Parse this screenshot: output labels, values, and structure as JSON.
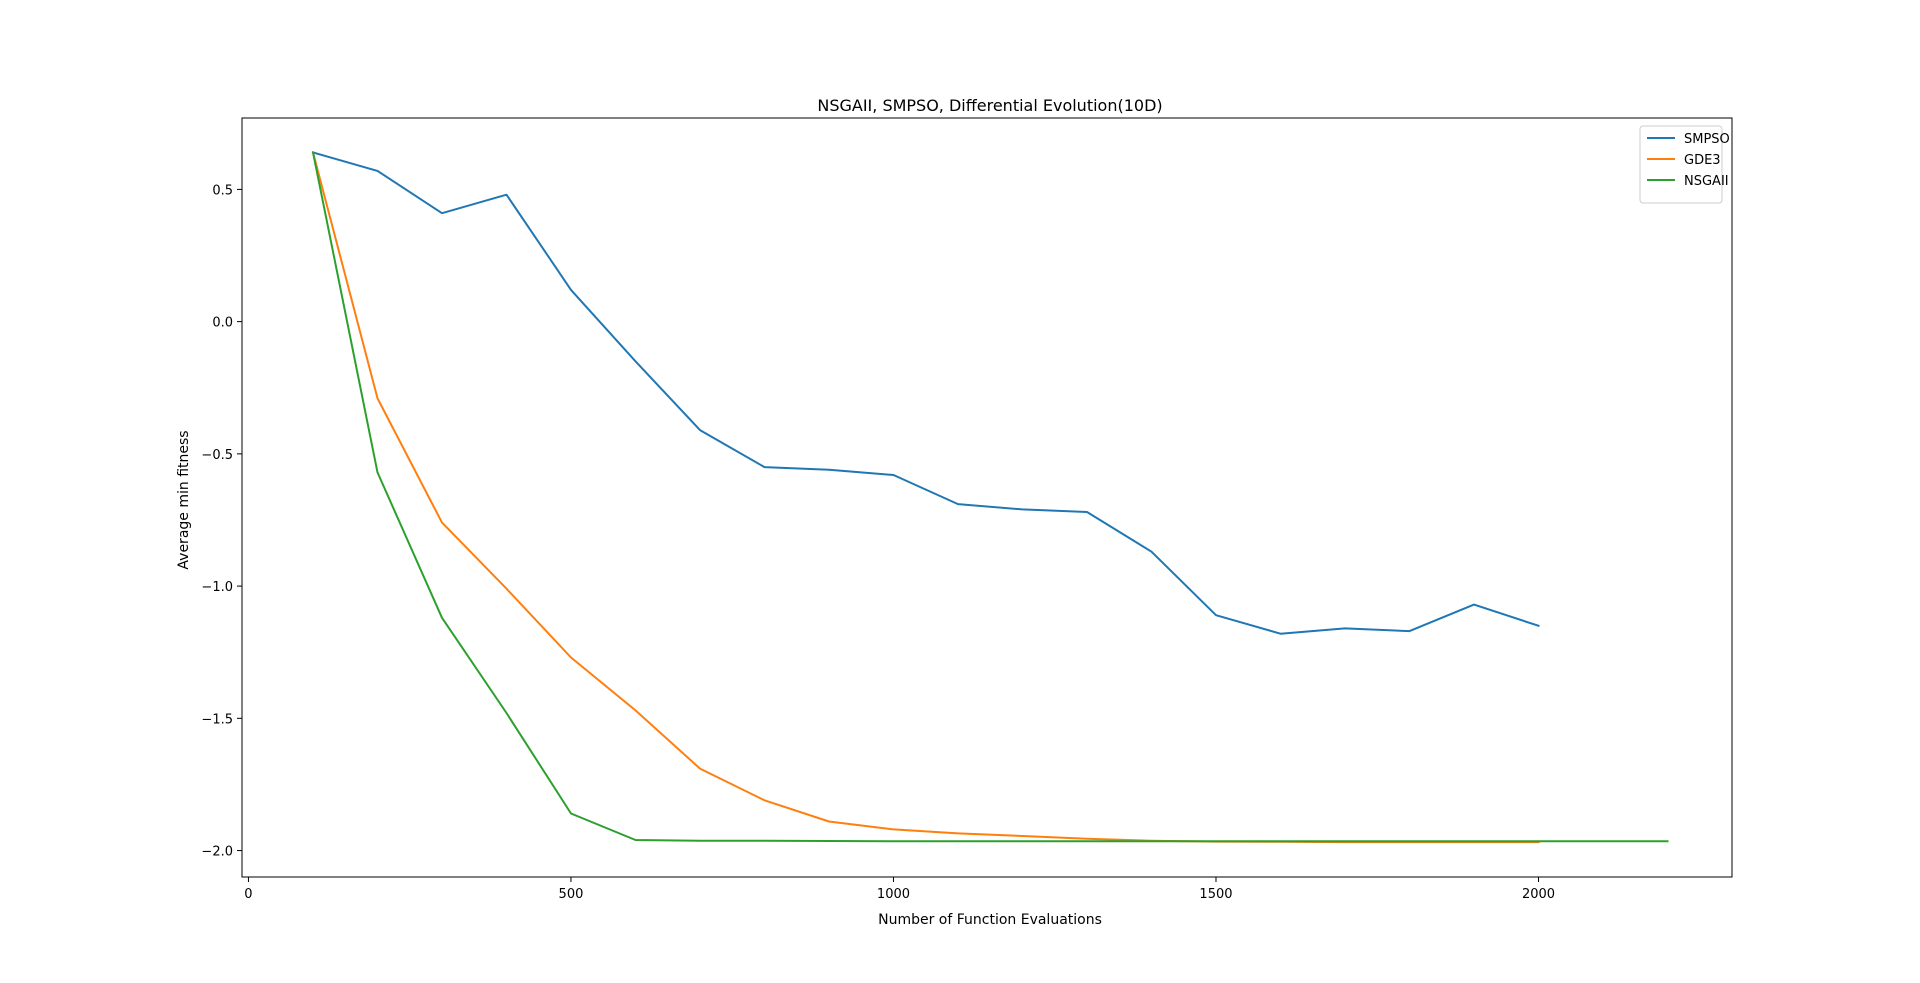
{
  "chart_data": {
    "type": "line",
    "title": "NSGAII, SMPSO, Differential Evolution(10D)",
    "xlabel": "Number of Function Evaluations",
    "ylabel": "Average min fitness",
    "xlim": [
      -10,
      2300
    ],
    "ylim": [
      -2.1,
      0.77
    ],
    "xticks": [
      0,
      500,
      1000,
      1500,
      2000
    ],
    "yticks": [
      0.5,
      0.0,
      -0.5,
      -1.0,
      -1.5,
      -2.0
    ],
    "xtick_labels": [
      "0",
      "500",
      "1000",
      "1500",
      "2000"
    ],
    "ytick_labels": [
      "0.5",
      "0.0",
      "−0.5",
      "−1.0",
      "−1.5",
      "−2.0"
    ],
    "grid": false,
    "legend_position": "top-right",
    "series": [
      {
        "name": "SMPSO",
        "color": "#1f77b4",
        "x": [
          100,
          200,
          300,
          400,
          500,
          600,
          700,
          800,
          900,
          1000,
          1100,
          1200,
          1300,
          1400,
          1500,
          1600,
          1700,
          1800,
          1900,
          2000
        ],
        "values": [
          0.64,
          0.57,
          0.41,
          0.48,
          0.12,
          -0.15,
          -0.41,
          -0.55,
          -0.56,
          -0.58,
          -0.69,
          -0.71,
          -0.72,
          -0.87,
          -1.11,
          -1.18,
          -1.16,
          -1.17,
          -1.07,
          -1.15
        ]
      },
      {
        "name": "GDE3",
        "color": "#ff7f0e",
        "x": [
          100,
          200,
          300,
          400,
          500,
          600,
          700,
          800,
          900,
          1000,
          1100,
          1200,
          1300,
          1400,
          1500,
          1600,
          1700,
          1800,
          1900,
          2000
        ],
        "values": [
          0.64,
          -0.29,
          -0.76,
          -1.01,
          -1.27,
          -1.47,
          -1.69,
          -1.81,
          -1.89,
          -1.92,
          -1.935,
          -1.945,
          -1.955,
          -1.963,
          -1.966,
          -1.967,
          -1.968,
          -1.968,
          -1.968,
          -1.968
        ]
      },
      {
        "name": "NSGAII",
        "color": "#2ca02c",
        "x": [
          100,
          200,
          300,
          400,
          500,
          600,
          700,
          800,
          900,
          1000,
          1100,
          1200,
          1300,
          1400,
          1500,
          1600,
          1700,
          1800,
          1900,
          2000,
          2100,
          2200
        ],
        "values": [
          0.64,
          -0.57,
          -1.12,
          -1.48,
          -1.86,
          -1.96,
          -1.963,
          -1.963,
          -1.964,
          -1.965,
          -1.965,
          -1.965,
          -1.965,
          -1.965,
          -1.965,
          -1.965,
          -1.965,
          -1.965,
          -1.965,
          -1.965,
          -1.965,
          -1.965
        ]
      }
    ]
  }
}
